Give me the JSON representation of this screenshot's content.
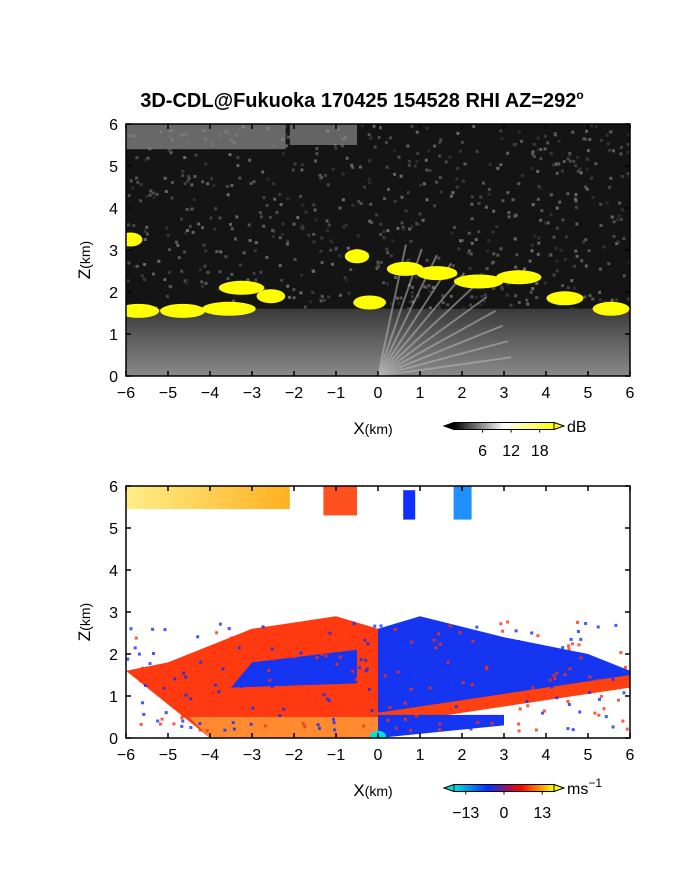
{
  "title": "3D-CDL@Fukuoka 170425 154528 RHI AZ=292",
  "title_sup": "o",
  "chart_data": [
    {
      "type": "heatmap",
      "quantity": "reflectivity",
      "xlabel_main": "X",
      "xlabel_unit": "(km)",
      "ylabel_main": "Z",
      "ylabel_unit": "(km)",
      "xlim": [
        -6,
        6
      ],
      "ylim": [
        0,
        6
      ],
      "x_ticks": [
        -6,
        -5,
        -4,
        -3,
        -2,
        -1,
        0,
        1,
        2,
        3,
        4,
        5,
        6
      ],
      "y_ticks": [
        0,
        1,
        2,
        3,
        4,
        5,
        6
      ],
      "colorbar": {
        "unit": "dB",
        "unit_sup": "",
        "tick_labels": [
          "6",
          "12",
          "18"
        ],
        "tick_values": [
          6,
          12,
          18
        ],
        "range": [
          0,
          21
        ],
        "colors": [
          "#000000",
          "#ffffff",
          "#ffff00"
        ]
      }
    },
    {
      "type": "heatmap",
      "quantity": "radial velocity",
      "xlabel_main": "X",
      "xlabel_unit": "(km)",
      "ylabel_main": "Z",
      "ylabel_unit": "(km)",
      "xlim": [
        -6,
        6
      ],
      "ylim": [
        0,
        6
      ],
      "x_ticks": [
        -6,
        -5,
        -4,
        -3,
        -2,
        -1,
        0,
        1,
        2,
        3,
        4,
        5,
        6
      ],
      "y_ticks": [
        0,
        1,
        2,
        3,
        4,
        5,
        6
      ],
      "colorbar": {
        "unit": "ms",
        "unit_sup": "−1",
        "tick_labels": [
          "−13",
          "0",
          "13"
        ],
        "tick_values": [
          -13,
          0,
          13
        ],
        "range": [
          -17,
          17
        ],
        "colors": [
          "#00e0e0",
          "#0030ff",
          "#ff0000",
          "#ffff00"
        ]
      }
    }
  ]
}
